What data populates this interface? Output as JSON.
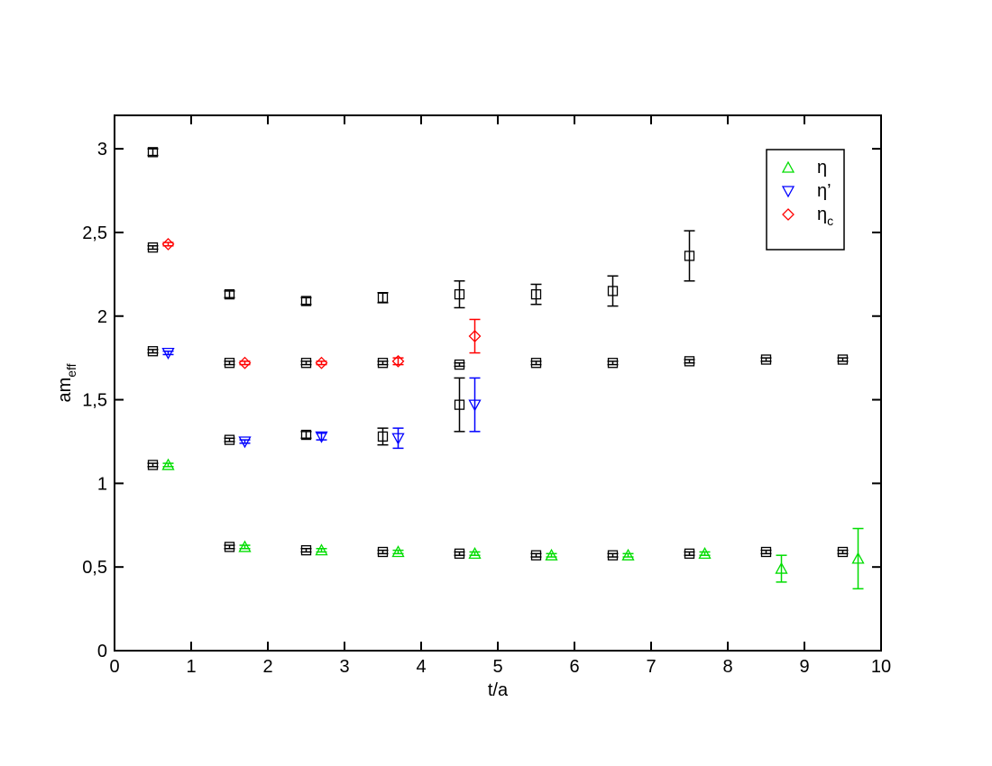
{
  "chart_data": {
    "type": "scatter",
    "x_label": "t/a",
    "y_label": {
      "text": "am",
      "sub": "eff"
    },
    "xlim": [
      0,
      10
    ],
    "xticks": [
      0,
      1,
      2,
      3,
      4,
      5,
      6,
      7,
      8,
      9,
      10
    ],
    "ylim": [
      0,
      3.2
    ],
    "yticks": [
      0,
      {
        "value": 0.5,
        "label": "0,5"
      },
      1,
      {
        "value": 1.5,
        "label": "1,5"
      },
      2,
      {
        "value": 2.5,
        "label": "2,5"
      },
      3
    ],
    "legend_position": "upper right",
    "series": [
      {
        "color": "#000000",
        "marker": "square",
        "x": [
          0.5,
          1.5,
          2.5,
          3.5,
          4.5,
          5.5,
          6.5,
          7.5
        ],
        "values": [
          2.98,
          2.13,
          2.09,
          2.11,
          2.13,
          2.13,
          2.15,
          2.36
        ],
        "errors": [
          0.02,
          0.02,
          0.02,
          0.03,
          0.08,
          0.06,
          0.09,
          0.15
        ]
      },
      {
        "color": "#000000",
        "marker": "square",
        "x": [
          0.5,
          1.5,
          2.5,
          3.5,
          4.5,
          5.5,
          6.5,
          7.5,
          8.5,
          9.5
        ],
        "values": [
          2.41,
          1.72,
          1.72,
          1.72,
          1.71,
          1.72,
          1.72,
          1.73,
          1.74,
          1.74
        ],
        "errors": [
          0.01,
          0.01,
          0.01,
          0.01,
          0.01,
          0.01,
          0.01,
          0.01,
          0.01,
          0.01
        ]
      },
      {
        "color": "#000000",
        "marker": "square",
        "x": [
          0.5,
          1.5,
          2.5,
          3.5,
          4.5
        ],
        "values": [
          1.79,
          1.26,
          1.29,
          1.28,
          1.47
        ],
        "errors": [
          0.01,
          0.01,
          0.02,
          0.05,
          0.16
        ]
      },
      {
        "color": "#000000",
        "marker": "square",
        "x": [
          0.5,
          1.5,
          2.5,
          3.5,
          4.5,
          5.5,
          6.5,
          7.5,
          8.5,
          9.5
        ],
        "values": [
          1.11,
          0.62,
          0.6,
          0.59,
          0.58,
          0.57,
          0.57,
          0.58,
          0.59,
          0.59
        ],
        "errors": [
          0.01,
          0.01,
          0.01,
          0.01,
          0.01,
          0.01,
          0.01,
          0.01,
          0.01,
          0.01
        ]
      },
      {
        "name": "η",
        "color": "#00dd00",
        "marker": "triangle-up",
        "x": [
          0.7,
          1.7,
          2.7,
          3.7,
          4.7,
          5.7,
          6.7,
          7.7,
          8.7,
          9.7
        ],
        "values": [
          1.11,
          0.62,
          0.6,
          0.59,
          0.58,
          0.57,
          0.57,
          0.58,
          0.49,
          0.55
        ],
        "errors": [
          0.01,
          0.01,
          0.01,
          0.01,
          0.01,
          0.01,
          0.01,
          0.01,
          0.08,
          0.18
        ]
      },
      {
        "name": "η’",
        "color": "#0000ff",
        "marker": "triangle-down",
        "x": [
          0.7,
          1.7,
          2.7,
          3.7,
          4.7
        ],
        "values": [
          1.78,
          1.25,
          1.28,
          1.27,
          1.47
        ],
        "errors": [
          0.01,
          0.01,
          0.02,
          0.06,
          0.16
        ]
      },
      {
        "name": "η",
        "name_sub": "c",
        "color": "#ff0000",
        "marker": "diamond",
        "x": [
          0.7,
          1.7,
          2.7,
          3.7,
          4.7
        ],
        "values": [
          2.43,
          1.72,
          1.72,
          1.73,
          1.88
        ],
        "errors": [
          0.01,
          0.01,
          0.01,
          0.02,
          0.1
        ]
      }
    ]
  }
}
